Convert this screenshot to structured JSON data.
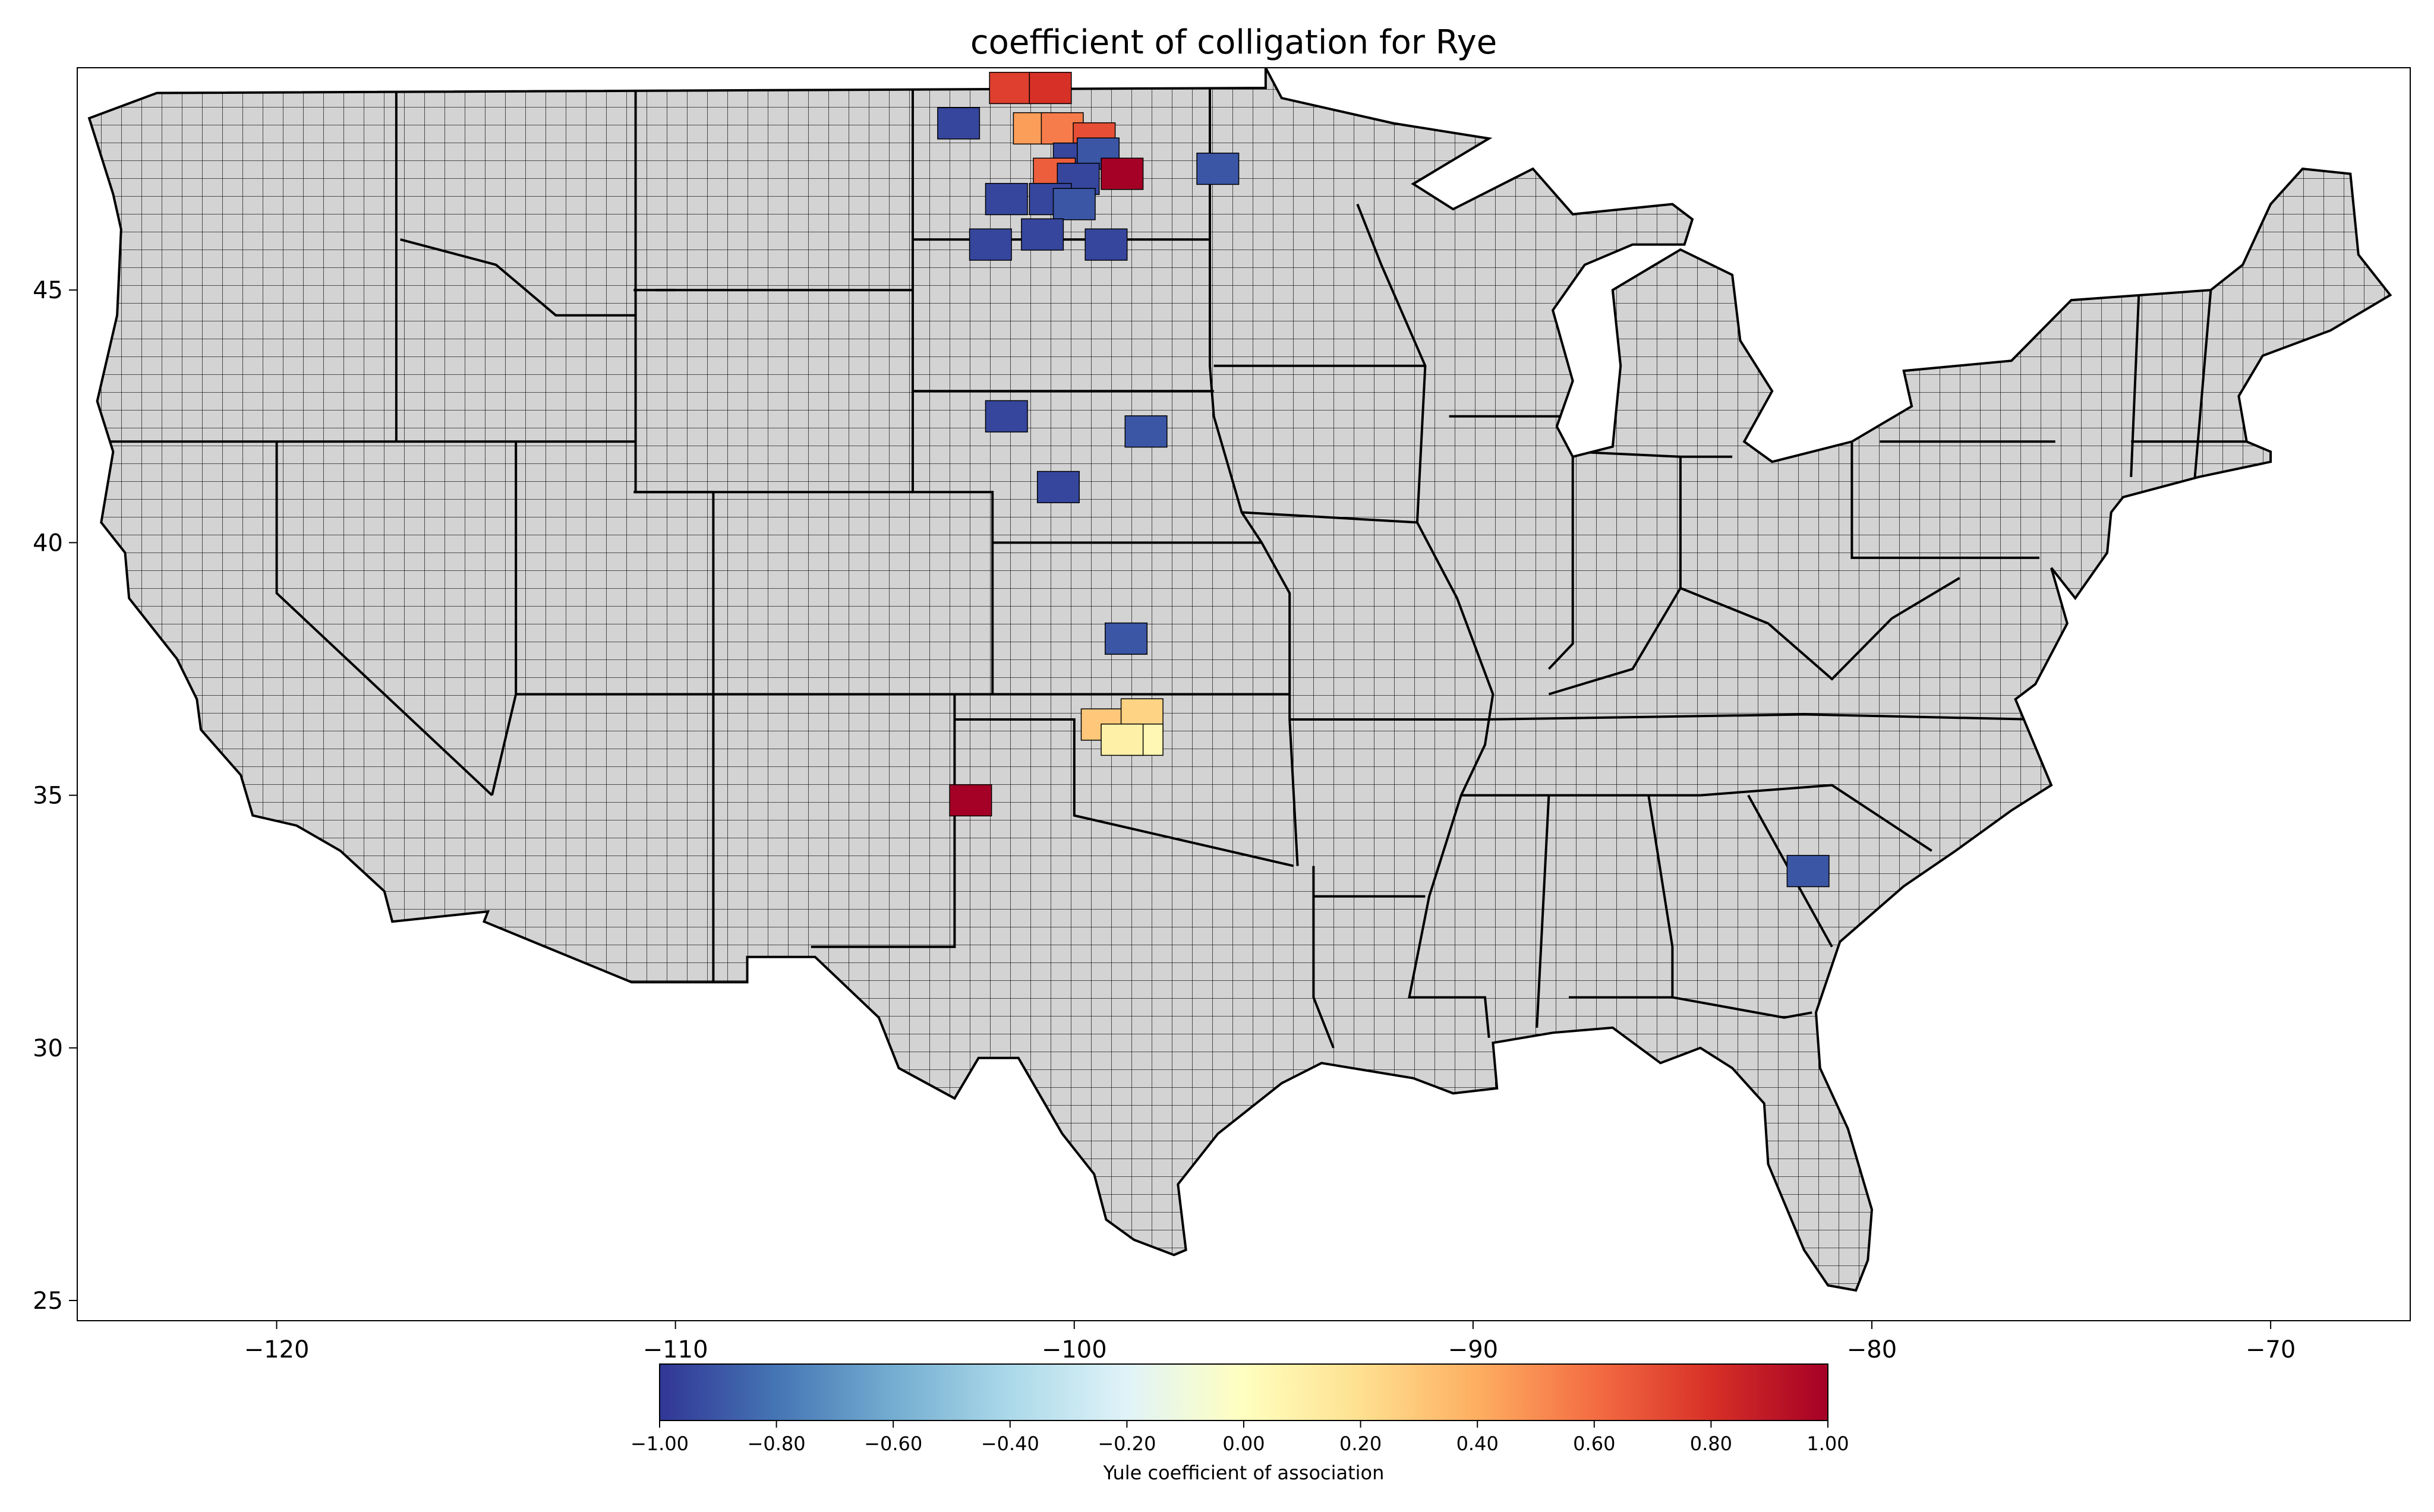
{
  "title": "coefficient of colligation for Rye",
  "map": {
    "region": "contiguous United States",
    "background_fill": "#d3d3d3",
    "county_edge": "#000000",
    "lon_range": [
      -125,
      -66.5
    ],
    "lat_range": [
      24.6,
      49.4
    ],
    "x_ticks": [
      -120,
      -110,
      -100,
      -90,
      -80,
      -70
    ],
    "y_ticks": [
      25,
      30,
      35,
      40,
      45
    ],
    "x_tick_labels": [
      "−120",
      "−110",
      "−100",
      "−90",
      "−80",
      "−70"
    ],
    "y_tick_labels": [
      "25",
      "30",
      "35",
      "40",
      "45"
    ],
    "highlighted_counties": [
      {
        "lon": -102.9,
        "lat": 48.3,
        "value": -0.95
      },
      {
        "lon": -101.6,
        "lat": 49.0,
        "value": 0.75
      },
      {
        "lon": -100.6,
        "lat": 49.0,
        "value": 0.8
      },
      {
        "lon": -101.0,
        "lat": 48.2,
        "value": 0.45
      },
      {
        "lon": -100.3,
        "lat": 48.2,
        "value": 0.55
      },
      {
        "lon": -99.5,
        "lat": 48.0,
        "value": 0.7
      },
      {
        "lon": -100.0,
        "lat": 47.6,
        "value": -0.95
      },
      {
        "lon": -99.4,
        "lat": 47.7,
        "value": -0.9
      },
      {
        "lon": -100.5,
        "lat": 47.3,
        "value": 0.65
      },
      {
        "lon": -99.9,
        "lat": 47.2,
        "value": -0.95
      },
      {
        "lon": -98.8,
        "lat": 47.3,
        "value": 1.0
      },
      {
        "lon": -96.4,
        "lat": 47.4,
        "value": -0.9
      },
      {
        "lon": -101.7,
        "lat": 46.8,
        "value": -0.95
      },
      {
        "lon": -100.6,
        "lat": 46.8,
        "value": -0.95
      },
      {
        "lon": -100.0,
        "lat": 46.7,
        "value": -0.9
      },
      {
        "lon": -102.1,
        "lat": 45.9,
        "value": -0.95
      },
      {
        "lon": -100.8,
        "lat": 46.1,
        "value": -0.95
      },
      {
        "lon": -99.2,
        "lat": 45.9,
        "value": -0.95
      },
      {
        "lon": -101.7,
        "lat": 42.5,
        "value": -0.95
      },
      {
        "lon": -98.2,
        "lat": 42.2,
        "value": -0.9
      },
      {
        "lon": -100.4,
        "lat": 41.1,
        "value": -0.95
      },
      {
        "lon": -98.7,
        "lat": 38.1,
        "value": -0.9
      },
      {
        "lon": -99.3,
        "lat": 36.4,
        "value": 0.3
      },
      {
        "lon": -98.3,
        "lat": 36.6,
        "value": 0.25
      },
      {
        "lon": -98.3,
        "lat": 36.1,
        "value": 0.05
      },
      {
        "lon": -98.8,
        "lat": 36.1,
        "value": 0.1
      },
      {
        "lon": -102.6,
        "lat": 34.9,
        "value": 1.0
      },
      {
        "lon": -81.6,
        "lat": 33.5,
        "value": -0.9
      }
    ]
  },
  "colorbar": {
    "label": "Yule coefficient of association",
    "min": -1.0,
    "max": 1.0,
    "colormap": "RdYlBu_r",
    "stops": [
      "#313695",
      "#4575b4",
      "#74add1",
      "#abd9e9",
      "#e0f3f8",
      "#ffffbf",
      "#fee090",
      "#fdae61",
      "#f46d43",
      "#d73027",
      "#a50026"
    ],
    "tick_labels": [
      "−1.00",
      "−0.80",
      "−0.60",
      "−0.40",
      "−0.20",
      "0.00",
      "0.20",
      "0.40",
      "0.60",
      "0.80",
      "1.00"
    ]
  }
}
